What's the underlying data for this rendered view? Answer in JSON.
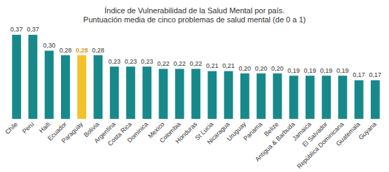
{
  "chart_data": {
    "type": "bar",
    "title": "Índice de Vulnerabilidad de la Salud Mental por país.",
    "subtitle": "Puntuación media de cinco problemas de salud mental (de 0 a 1)",
    "categories": [
      "Chile",
      "Peru",
      "Haiti",
      "Ecuador",
      "Paraguay",
      "Bolivia",
      "Argentina",
      "Costa Rica",
      "Dominica",
      "Mexico",
      "Colombia",
      "Honduras",
      "St Lucia",
      "Nicaragua",
      "Uruguay",
      "Panama",
      "Belize",
      "Antigua & Barbuda",
      "Jamaica",
      "El Salvador",
      "República Dominicana",
      "Guatemala",
      "Guyana"
    ],
    "values": [
      0.37,
      0.37,
      0.3,
      0.28,
      0.28,
      0.28,
      0.23,
      0.23,
      0.23,
      0.22,
      0.22,
      0.22,
      0.21,
      0.21,
      0.2,
      0.2,
      0.2,
      0.19,
      0.19,
      0.19,
      0.19,
      0.17,
      0.17
    ],
    "value_labels": [
      "0,37",
      "0,37",
      "0,30",
      "0,28",
      "0,28",
      "0,28",
      "0,23",
      "0,23",
      "0,23",
      "0,22",
      "0,22",
      "0,22",
      "0,21",
      "0,21",
      "0,20",
      "0,20",
      "0,20",
      "0,19",
      "0,19",
      "0,19",
      "0,19",
      "0,17",
      "0,17"
    ],
    "colors": [
      "#17898a",
      "#17898a",
      "#17898a",
      "#17898a",
      "#f3c22b",
      "#17898a",
      "#17898a",
      "#17898a",
      "#17898a",
      "#17898a",
      "#17898a",
      "#17898a",
      "#17898a",
      "#17898a",
      "#17898a",
      "#17898a",
      "#17898a",
      "#17898a",
      "#17898a",
      "#17898a",
      "#17898a",
      "#17898a",
      "#17898a"
    ],
    "ylim": [
      0,
      0.4
    ],
    "yticks": [
      0,
      0.4
    ],
    "grid": false,
    "data_labels": true,
    "tick_labels": "x"
  }
}
